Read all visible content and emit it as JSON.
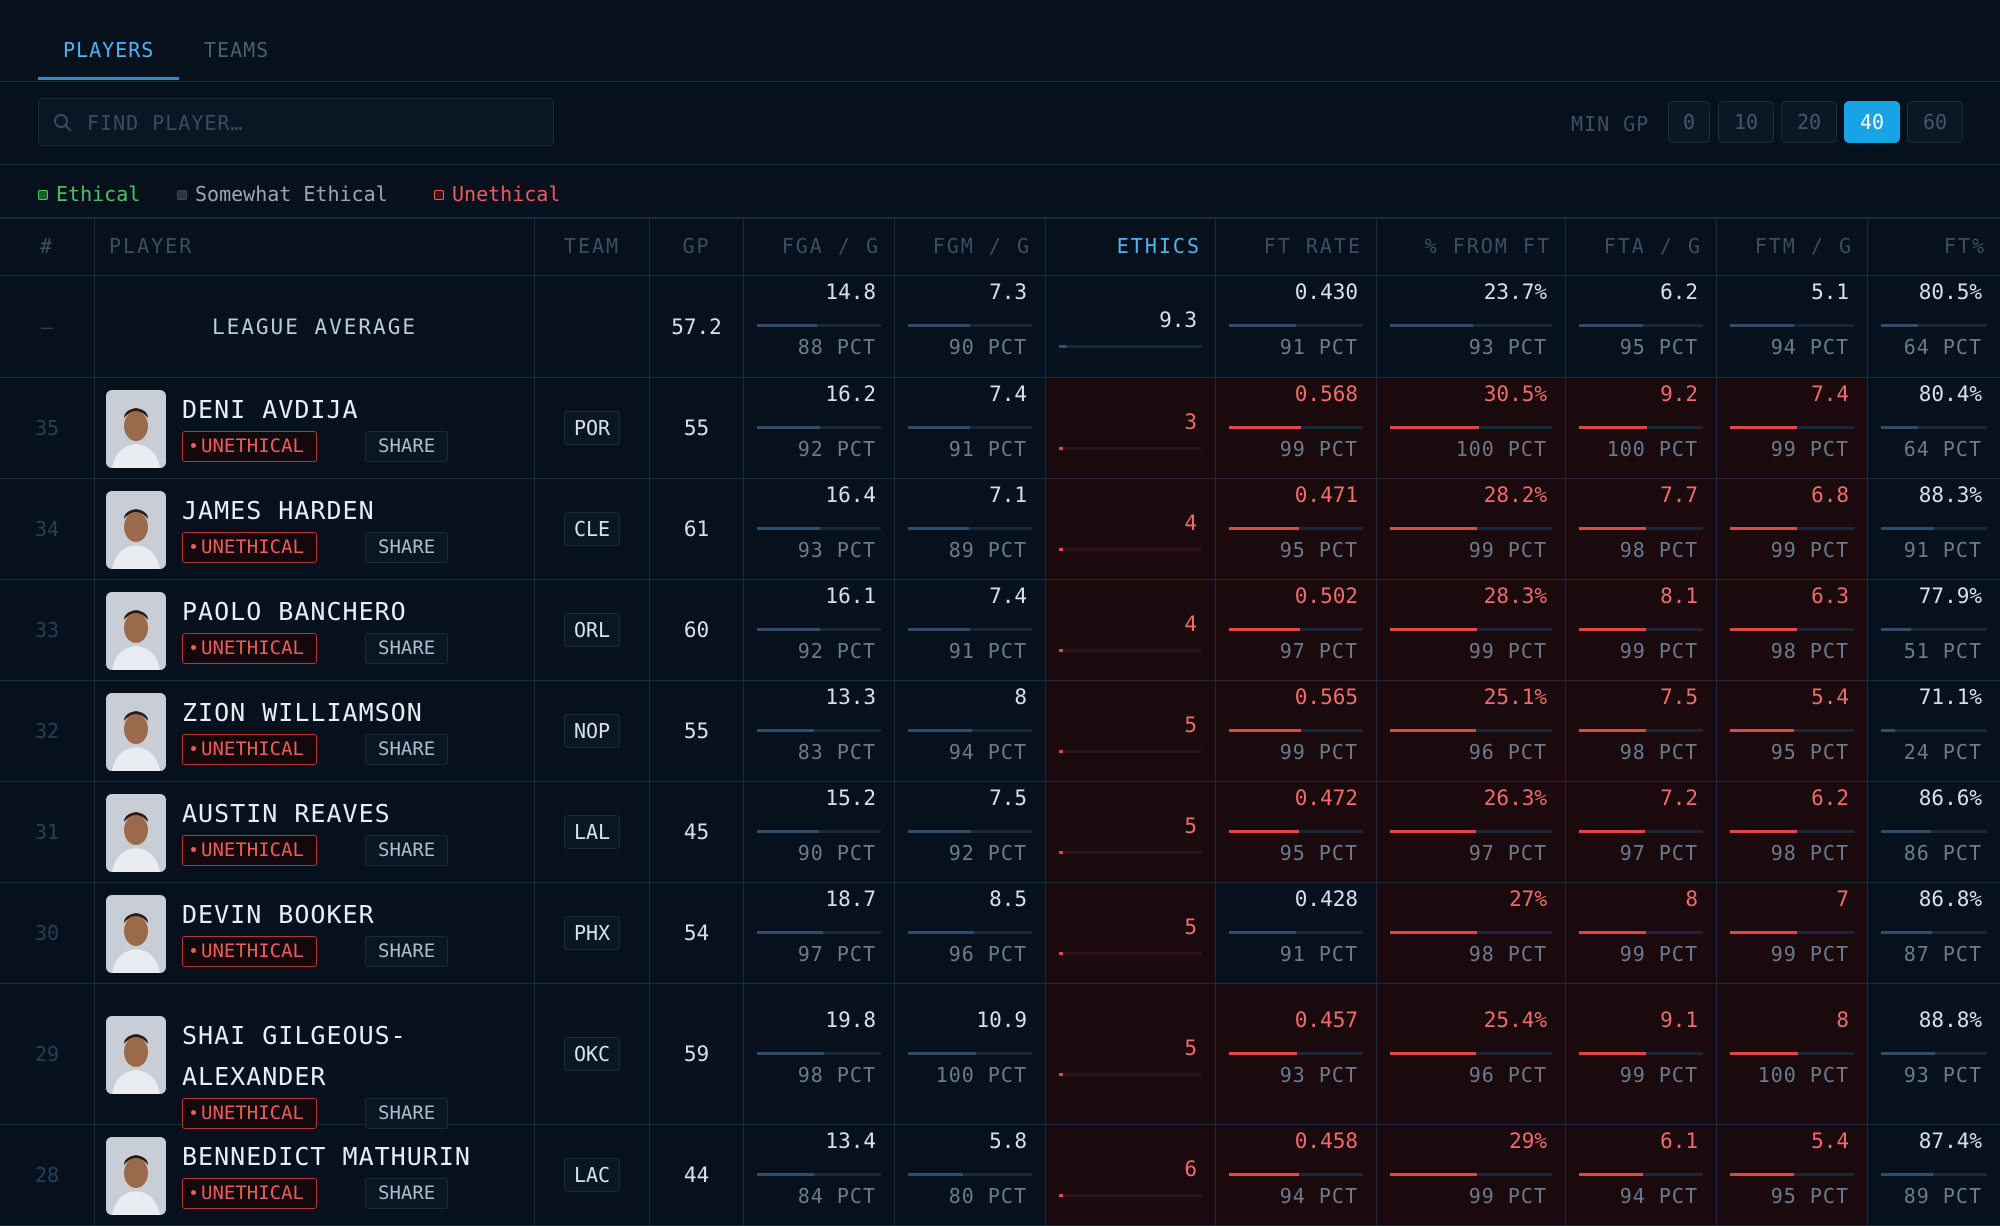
{
  "tabs": [
    {
      "label": "PLAYERS",
      "active": true
    },
    {
      "label": "TEAMS",
      "active": false
    }
  ],
  "search": {
    "placeholder": "FIND PLAYER…",
    "value": "",
    "icon": "search-icon"
  },
  "filter": {
    "label": "MIN GP",
    "options": [
      "0",
      "10",
      "20",
      "40",
      "60"
    ],
    "selected": "40"
  },
  "legend": [
    {
      "label": "Ethical",
      "color": "#4cc25a"
    },
    {
      "label": "Somewhat Ethical",
      "color": "#9aa6b4"
    },
    {
      "label": "Unethical",
      "color": "#ef5a5a"
    }
  ],
  "columns": [
    "#",
    "PLAYER",
    "TEAM",
    "GP",
    "FGA / G",
    "FGM / G",
    "ETHICS",
    "FT RATE",
    "% FROM FT",
    "FTA / G",
    "FTM / G",
    "FT%"
  ],
  "league_average": {
    "rank": "—",
    "label": "LEAGUE AVERAGE",
    "gp": "57.2",
    "fga": {
      "v": "14.8",
      "p": "88 PCT",
      "f": 0.88
    },
    "fgm": {
      "v": "7.3",
      "p": "90 PCT",
      "f": 0.9
    },
    "ethics": {
      "v": "9.3"
    },
    "ftr": {
      "v": "0.430",
      "p": "91 PCT",
      "f": 0.91
    },
    "pft": {
      "v": "23.7%",
      "p": "93 PCT",
      "f": 0.93
    },
    "fta": {
      "v": "6.2",
      "p": "95 PCT",
      "f": 0.95
    },
    "ftm": {
      "v": "5.1",
      "p": "94 PCT",
      "f": 0.94
    },
    "ftp": {
      "v": "80.5%",
      "p": "64 PCT",
      "f": 0.64
    }
  },
  "rows": [
    {
      "rank": "35",
      "name": [
        "DENI AVDIJA"
      ],
      "tag": "UNETHICAL",
      "share": "SHARE",
      "team": "POR",
      "gp": "55",
      "fga": {
        "v": "16.2",
        "p": "92 PCT"
      },
      "fgm": {
        "v": "7.4",
        "p": "91 PCT"
      },
      "ethics": "3",
      "ftr": {
        "v": "0.568",
        "p": "99 PCT",
        "red": true
      },
      "pft": {
        "v": "30.5%",
        "p": "100 PCT",
        "red": true
      },
      "fta": {
        "v": "9.2",
        "p": "100 PCT",
        "red": true
      },
      "ftm": {
        "v": "7.4",
        "p": "99 PCT",
        "red": true
      },
      "ftp": {
        "v": "80.4%",
        "p": "64 PCT"
      }
    },
    {
      "rank": "34",
      "name": [
        "JAMES HARDEN"
      ],
      "tag": "UNETHICAL",
      "share": "SHARE",
      "team": "CLE",
      "gp": "61",
      "fga": {
        "v": "16.4",
        "p": "93 PCT"
      },
      "fgm": {
        "v": "7.1",
        "p": "89 PCT"
      },
      "ethics": "4",
      "ftr": {
        "v": "0.471",
        "p": "95 PCT",
        "red": true
      },
      "pft": {
        "v": "28.2%",
        "p": "99 PCT",
        "red": true
      },
      "fta": {
        "v": "7.7",
        "p": "98 PCT",
        "red": true
      },
      "ftm": {
        "v": "6.8",
        "p": "99 PCT",
        "red": true
      },
      "ftp": {
        "v": "88.3%",
        "p": "91 PCT"
      }
    },
    {
      "rank": "33",
      "name": [
        "PAOLO BANCHERO"
      ],
      "tag": "UNETHICAL",
      "share": "SHARE",
      "team": "ORL",
      "gp": "60",
      "fga": {
        "v": "16.1",
        "p": "92 PCT"
      },
      "fgm": {
        "v": "7.4",
        "p": "91 PCT"
      },
      "ethics": "4",
      "ftr": {
        "v": "0.502",
        "p": "97 PCT",
        "red": true
      },
      "pft": {
        "v": "28.3%",
        "p": "99 PCT",
        "red": true
      },
      "fta": {
        "v": "8.1",
        "p": "99 PCT",
        "red": true
      },
      "ftm": {
        "v": "6.3",
        "p": "98 PCT",
        "red": true
      },
      "ftp": {
        "v": "77.9%",
        "p": "51 PCT"
      }
    },
    {
      "rank": "32",
      "name": [
        "ZION WILLIAMSON"
      ],
      "tag": "UNETHICAL",
      "share": "SHARE",
      "team": "NOP",
      "gp": "55",
      "fga": {
        "v": "13.3",
        "p": "83 PCT"
      },
      "fgm": {
        "v": "8",
        "p": "94 PCT"
      },
      "ethics": "5",
      "ftr": {
        "v": "0.565",
        "p": "99 PCT",
        "red": true
      },
      "pft": {
        "v": "25.1%",
        "p": "96 PCT",
        "red": true
      },
      "fta": {
        "v": "7.5",
        "p": "98 PCT",
        "red": true
      },
      "ftm": {
        "v": "5.4",
        "p": "95 PCT",
        "red": true
      },
      "ftp": {
        "v": "71.1%",
        "p": "24 PCT"
      }
    },
    {
      "rank": "31",
      "name": [
        "AUSTIN REAVES"
      ],
      "tag": "UNETHICAL",
      "share": "SHARE",
      "team": "LAL",
      "gp": "45",
      "fga": {
        "v": "15.2",
        "p": "90 PCT"
      },
      "fgm": {
        "v": "7.5",
        "p": "92 PCT"
      },
      "ethics": "5",
      "ftr": {
        "v": "0.472",
        "p": "95 PCT",
        "red": true
      },
      "pft": {
        "v": "26.3%",
        "p": "97 PCT",
        "red": true
      },
      "fta": {
        "v": "7.2",
        "p": "97 PCT",
        "red": true
      },
      "ftm": {
        "v": "6.2",
        "p": "98 PCT",
        "red": true
      },
      "ftp": {
        "v": "86.6%",
        "p": "86 PCT"
      }
    },
    {
      "rank": "30",
      "name": [
        "DEVIN BOOKER"
      ],
      "tag": "UNETHICAL",
      "share": "SHARE",
      "team": "PHX",
      "gp": "54",
      "fga": {
        "v": "18.7",
        "p": "97 PCT"
      },
      "fgm": {
        "v": "8.5",
        "p": "96 PCT"
      },
      "ethics": "5",
      "ftr": {
        "v": "0.428",
        "p": "91 PCT",
        "red": false
      },
      "pft": {
        "v": "27%",
        "p": "98 PCT",
        "red": true
      },
      "fta": {
        "v": "8",
        "p": "99 PCT",
        "red": true
      },
      "ftm": {
        "v": "7",
        "p": "99 PCT",
        "red": true
      },
      "ftp": {
        "v": "86.8%",
        "p": "87 PCT"
      }
    },
    {
      "rank": "29",
      "name": [
        "SHAI GILGEOUS-",
        "ALEXANDER"
      ],
      "tag": "UNETHICAL",
      "share": "SHARE",
      "team": "OKC",
      "gp": "59",
      "fga": {
        "v": "19.8",
        "p": "98 PCT"
      },
      "fgm": {
        "v": "10.9",
        "p": "100 PCT"
      },
      "ethics": "5",
      "ftr": {
        "v": "0.457",
        "p": "93 PCT",
        "red": true
      },
      "pft": {
        "v": "25.4%",
        "p": "96 PCT",
        "red": true
      },
      "fta": {
        "v": "9.1",
        "p": "99 PCT",
        "red": true
      },
      "ftm": {
        "v": "8",
        "p": "100 PCT",
        "red": true
      },
      "ftp": {
        "v": "88.8%",
        "p": "93 PCT"
      }
    },
    {
      "rank": "28",
      "name": [
        "BENNEDICT MATHURIN"
      ],
      "tag": "UNETHICAL",
      "share": "SHARE",
      "team": "LAC",
      "gp": "44",
      "fga": {
        "v": "13.4",
        "p": "84 PCT"
      },
      "fgm": {
        "v": "5.8",
        "p": "80 PCT"
      },
      "ethics": "6",
      "ftr": {
        "v": "0.458",
        "p": "94 PCT",
        "red": true
      },
      "pft": {
        "v": "29%",
        "p": "99 PCT",
        "red": true
      },
      "fta": {
        "v": "6.1",
        "p": "94 PCT",
        "red": true
      },
      "ftm": {
        "v": "5.4",
        "p": "95 PCT",
        "red": true
      },
      "ftp": {
        "v": "87.4%",
        "p": "89 PCT"
      }
    }
  ],
  "colors": {
    "accent": "#17a3e6",
    "unethical": "#ef5a5a",
    "background": "#07101d"
  }
}
